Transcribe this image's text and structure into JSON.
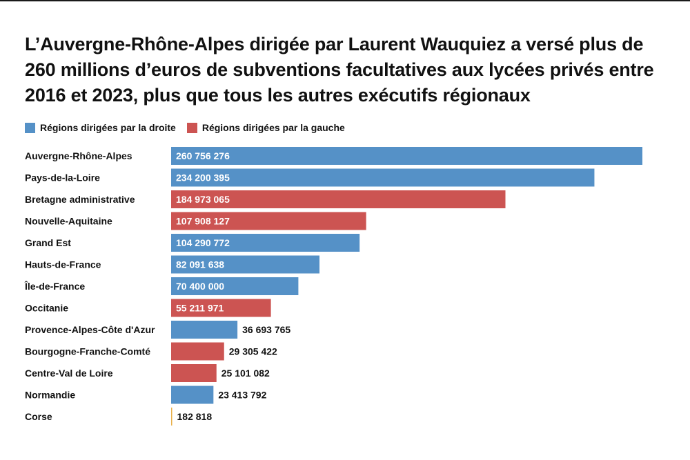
{
  "title": "L’Auvergne-Rhône-Alpes dirigée par Laurent Wauquiez a versé plus de 260 millions d’euros de subventions facultatives aux lycées privés entre 2016 et 2023, plus que tous les autres exécutifs régionaux",
  "colors": {
    "right": "#5591c7",
    "left": "#cc5452",
    "tiny_bar": "#e8b04a",
    "label_inside": "#ffffff",
    "label_outside": "#111111"
  },
  "legend": [
    {
      "key": "right",
      "label": "Régions dirigées par la droite"
    },
    {
      "key": "left",
      "label": "Régions dirigées par la gauche"
    }
  ],
  "chart_data": {
    "type": "bar",
    "orientation": "horizontal",
    "grid": false,
    "legend_position": "top-left",
    "xlim": [
      0,
      260756276
    ],
    "categories": [
      "Auvergne-Rhône-Alpes",
      "Pays-de-la-Loire",
      "Bretagne administrative",
      "Nouvelle-Aquitaine",
      "Grand Est",
      "Hauts-de-France",
      "Île-de-France",
      "Occitanie",
      "Provence-Alpes-Côte d'Azur",
      "Bourgogne-Franche-Comté",
      "Centre-Val de Loire",
      "Normandie",
      "Corse"
    ],
    "values": [
      260756276,
      234200395,
      184973065,
      107908127,
      104290772,
      82091638,
      70400000,
      55211971,
      36693765,
      29305422,
      25101082,
      23413792,
      182818
    ],
    "value_labels": [
      "260 756 276",
      "234 200 395",
      "184 973 065",
      "107 908 127",
      "104 290 772",
      "82 091 638",
      "70 400 000",
      "55 211 971",
      "36 693 765",
      "29 305 422",
      "25 101 082",
      "23 413 792",
      "182 818"
    ],
    "groups": [
      "right",
      "right",
      "left",
      "left",
      "right",
      "right",
      "right",
      "left",
      "right",
      "left",
      "left",
      "right",
      "other"
    ]
  }
}
